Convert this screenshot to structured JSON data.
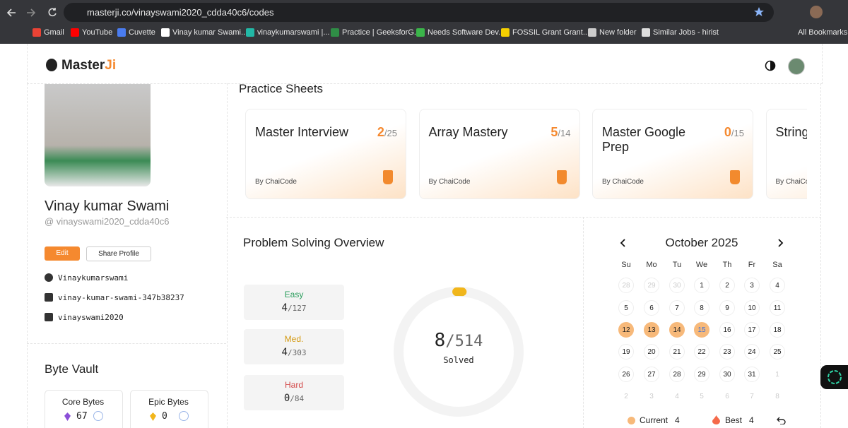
{
  "browser": {
    "url": "masterji.co/vinayswami2020_cdda40c6/codes",
    "bookmarks": [
      "Gmail",
      "YouTube",
      "Cuvette",
      "Vinay kumar Swami...",
      "vinaykumarswami |...",
      "Practice | GeeksforG...",
      "Needs Software Dev...",
      "FOSSIL Grant Grant...",
      "New folder",
      "Similar Jobs - hirist"
    ],
    "all_bookmarks": "All Bookmarks"
  },
  "header": {
    "logo": [
      "Master",
      "Ji"
    ]
  },
  "separator": "/",
  "profile": {
    "name": "Vinay kumar Swami",
    "handle": "@ vinayswami2020_cdda40c6",
    "edit": "Edit",
    "share": "Share Profile",
    "links": [
      "Vinaykumarswami",
      "vinay-kumar-swami-347b38237",
      "vinayswami2020"
    ]
  },
  "byte_vault": {
    "title": "Byte Vault",
    "items": [
      {
        "label": "Core Bytes",
        "value": 67
      },
      {
        "label": "Epic Bytes",
        "value": 0
      }
    ]
  },
  "practice_sheets": {
    "title": "Practice Sheets",
    "sheets": [
      {
        "title": "Master Interview",
        "solved": 2,
        "total": 25,
        "author": "By ChaiCode"
      },
      {
        "title": "Array Mastery",
        "solved": 5,
        "total": 14,
        "author": "By ChaiCode"
      },
      {
        "title": "Master Google Prep",
        "solved": 0,
        "total": 15,
        "author": "By ChaiCode"
      },
      {
        "title": "String",
        "author": "By ChaiCode"
      }
    ]
  },
  "overview": {
    "title": "Problem Solving Overview",
    "difficulties": [
      {
        "label": "Easy",
        "solved": 4,
        "total": 127
      },
      {
        "label": "Med.",
        "solved": 4,
        "total": 303
      },
      {
        "label": "Hard",
        "solved": 0,
        "total": 84
      }
    ],
    "solved": 8,
    "total": 514,
    "solved_label": "Solved"
  },
  "calendar": {
    "month": "October 2025",
    "weekdays": [
      "Su",
      "Mo",
      "Tu",
      "We",
      "Th",
      "Fr",
      "Sa"
    ],
    "weeks": [
      [
        28,
        29,
        30,
        1,
        2,
        3,
        4
      ],
      [
        5,
        6,
        7,
        8,
        9,
        10,
        11
      ],
      [
        12,
        13,
        14,
        15,
        16,
        17,
        18
      ],
      [
        19,
        20,
        21,
        22,
        23,
        24,
        25
      ],
      [
        26,
        27,
        28,
        29,
        30,
        31,
        1
      ],
      [
        2,
        3,
        4,
        5,
        6,
        7,
        8
      ]
    ],
    "streak_days": [
      12,
      13,
      14,
      15
    ],
    "today": 15,
    "current_label": "Current",
    "current": 4,
    "best_label": "Best",
    "best": 4
  }
}
